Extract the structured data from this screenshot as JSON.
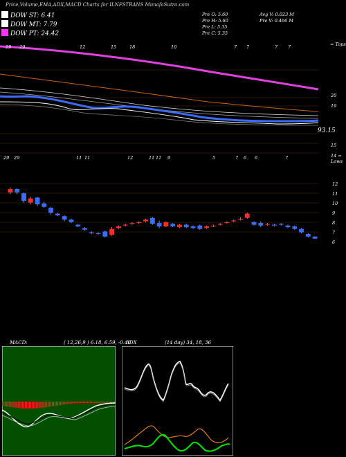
{
  "title": "Price,Volume,EMA,ADX,MACD Charts for ILNFSTRANS MunafaSutra.com",
  "legend": [
    {
      "label": "DOW ST: 6.41",
      "color": "#ffffff"
    },
    {
      "label": "DOW MT: 7.79",
      "color": "#ffffff"
    },
    {
      "label": "DOW PT: 24.42",
      "color": "#ff33ff"
    }
  ],
  "info": {
    "pre_o": "Pre O: 5.60",
    "pre_h": "Pre H: 5.60",
    "pre_l": "Pre L: 5.35",
    "pre_c": "Pre C: 5.35",
    "avg_v": "Avg V: 0.023 M",
    "pre_v": "Pre V: 0.466 M"
  },
  "colors": {
    "bull": "#ff2a2a",
    "bear": "#3a6dff",
    "pt": "#e040e0",
    "ema": "#c86414",
    "macd_hist": "#ff2020",
    "adx_green": "#00dd00",
    "adx_orange": "#e08010"
  },
  "chart_data": [
    {
      "type": "line",
      "name": "top-price-ema-panel",
      "y_tick_labels": [
        "= Tops",
        "20",
        "19",
        "93.15",
        "15",
        "14 = Lows"
      ],
      "date_labels": [
        "29",
        "29",
        "12",
        "15",
        "18",
        "10",
        "7",
        "7",
        "7",
        "7",
        "7"
      ],
      "annotation": "93.15"
    },
    {
      "type": "bar",
      "name": "candlestick-panel",
      "date_labels": [
        "29",
        "29",
        "11",
        "11",
        "12",
        "11",
        "11",
        "9",
        "5",
        "7",
        "6",
        "6",
        "7"
      ],
      "y_tick_labels": [
        "12",
        "11",
        "10",
        "9",
        "8",
        "7",
        "6"
      ],
      "ylim": [
        5,
        13
      ],
      "candles": [
        {
          "o": 10.8,
          "c": 11.2,
          "h": 11.4,
          "l": 10.6
        },
        {
          "o": 11.2,
          "c": 10.8,
          "h": 11.3,
          "l": 10.6
        },
        {
          "o": 10.7,
          "c": 9.8,
          "h": 10.8,
          "l": 9.6
        },
        {
          "o": 9.6,
          "c": 10.1,
          "h": 10.3,
          "l": 9.4
        },
        {
          "o": 10.2,
          "c": 9.4,
          "h": 10.3,
          "l": 9.2
        },
        {
          "o": 9.5,
          "c": 9.1,
          "h": 9.7,
          "l": 9.0
        },
        {
          "o": 9.0,
          "c": 8.4,
          "h": 9.1,
          "l": 8.2
        },
        {
          "o": 8.3,
          "c": 8.1,
          "h": 8.4,
          "l": 8.0
        },
        {
          "o": 8.0,
          "c": 7.6,
          "h": 8.1,
          "l": 7.4
        },
        {
          "o": 7.6,
          "c": 7.3,
          "h": 7.7,
          "l": 7.2
        },
        {
          "o": 7.0,
          "c": 6.8,
          "h": 7.1,
          "l": 6.7
        },
        {
          "o": 6.6,
          "c": 6.4,
          "h": 6.7,
          "l": 6.3
        },
        {
          "o": 6.1,
          "c": 6.0,
          "h": 6.2,
          "l": 5.9
        },
        {
          "o": 6.0,
          "c": 5.9,
          "h": 6.1,
          "l": 5.8
        },
        {
          "o": 6.2,
          "c": 5.6,
          "h": 6.3,
          "l": 5.5
        },
        {
          "o": 5.8,
          "c": 6.5,
          "h": 6.7,
          "l": 5.7
        },
        {
          "o": 6.6,
          "c": 6.8,
          "h": 6.9,
          "l": 6.5
        },
        {
          "o": 6.9,
          "c": 7.0,
          "h": 7.1,
          "l": 6.8
        },
        {
          "o": 7.1,
          "c": 7.2,
          "h": 7.3,
          "l": 7.0
        },
        {
          "o": 7.2,
          "c": 7.3,
          "h": 7.4,
          "l": 7.1
        },
        {
          "o": 7.4,
          "c": 7.6,
          "h": 7.7,
          "l": 7.3
        },
        {
          "o": 7.8,
          "c": 7.1,
          "h": 7.9,
          "l": 7.0
        },
        {
          "o": 7.2,
          "c": 6.8,
          "h": 7.5,
          "l": 6.6
        },
        {
          "o": 6.8,
          "c": 7.3,
          "h": 7.4,
          "l": 6.7
        },
        {
          "o": 7.1,
          "c": 6.8,
          "h": 7.2,
          "l": 6.7
        },
        {
          "o": 6.7,
          "c": 7.0,
          "h": 7.1,
          "l": 6.6
        },
        {
          "o": 7.0,
          "c": 6.7,
          "h": 7.1,
          "l": 6.6
        },
        {
          "o": 6.8,
          "c": 6.6,
          "h": 6.9,
          "l": 6.5
        },
        {
          "o": 6.9,
          "c": 6.5,
          "h": 7.0,
          "l": 6.4
        },
        {
          "o": 6.6,
          "c": 6.8,
          "h": 6.9,
          "l": 6.5
        },
        {
          "o": 6.8,
          "c": 6.9,
          "h": 7.0,
          "l": 6.7
        },
        {
          "o": 7.0,
          "c": 7.1,
          "h": 7.2,
          "l": 6.9
        },
        {
          "o": 7.2,
          "c": 7.3,
          "h": 7.4,
          "l": 7.1
        },
        {
          "o": 7.4,
          "c": 7.5,
          "h": 7.6,
          "l": 7.3
        },
        {
          "o": 7.6,
          "c": 7.7,
          "h": 7.9,
          "l": 7.5
        },
        {
          "o": 7.8,
          "c": 8.3,
          "h": 8.4,
          "l": 7.7
        },
        {
          "o": 7.3,
          "c": 7.0,
          "h": 7.4,
          "l": 6.9
        },
        {
          "o": 7.2,
          "c": 6.9,
          "h": 7.4,
          "l": 6.7
        },
        {
          "o": 7.0,
          "c": 7.1,
          "h": 7.2,
          "l": 6.9
        },
        {
          "o": 7.0,
          "c": 6.9,
          "h": 7.1,
          "l": 6.8
        },
        {
          "o": 7.1,
          "c": 7.0,
          "h": 7.2,
          "l": 6.9
        },
        {
          "o": 6.9,
          "c": 6.7,
          "h": 7.0,
          "l": 6.6
        },
        {
          "o": 6.8,
          "c": 6.5,
          "h": 6.9,
          "l": 6.4
        },
        {
          "o": 6.5,
          "c": 6.1,
          "h": 6.6,
          "l": 6.0
        },
        {
          "o": 5.9,
          "c": 5.6,
          "h": 6.0,
          "l": 5.5
        },
        {
          "o": 5.6,
          "c": 5.35,
          "h": 5.6,
          "l": 5.35
        }
      ]
    },
    {
      "type": "bar",
      "name": "macd-panel",
      "label": "MACD:",
      "params": "( 12,26,9 ) 6.18, 6.59, -0.41"
    },
    {
      "type": "line",
      "name": "adx-panel",
      "label": "ADX",
      "params": "(14 day) 34, 18, 36"
    }
  ]
}
